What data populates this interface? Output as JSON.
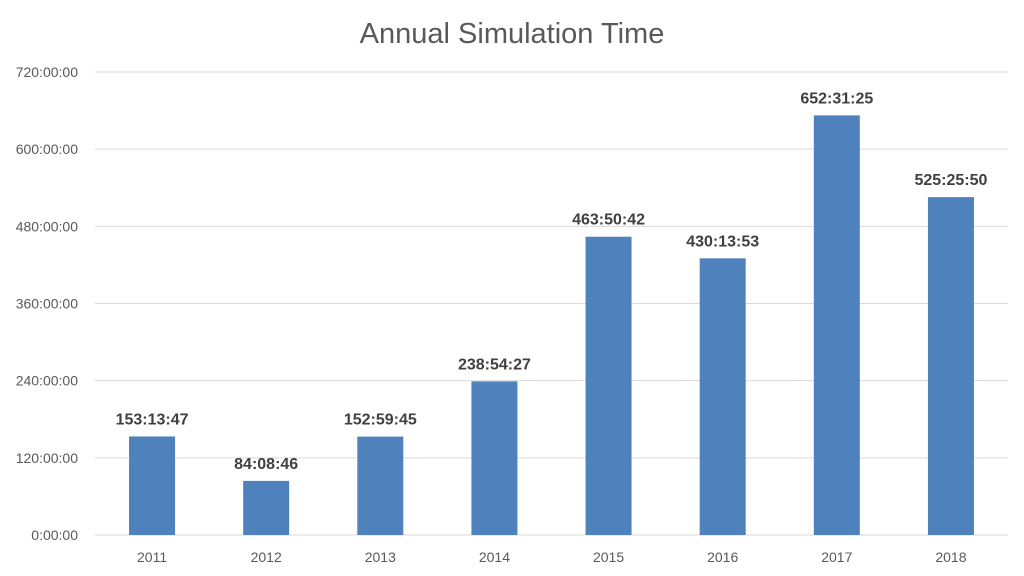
{
  "chart_data": {
    "type": "bar",
    "title": "Annual Simulation Time",
    "xlabel": "",
    "ylabel": "",
    "unit": "hours",
    "categories": [
      "2011",
      "2012",
      "2013",
      "2014",
      "2015",
      "2016",
      "2017",
      "2018"
    ],
    "values": [
      153.2297,
      84.1461,
      152.9958,
      238.9075,
      463.845,
      430.2314,
      652.5236,
      525.4306
    ],
    "value_labels": [
      "153:13:47",
      "84:08:46",
      "152:59:45",
      "238:54:27",
      "463:50:42",
      "430:13:53",
      "652:31:25",
      "525:25:50"
    ],
    "ylim": [
      0,
      720
    ],
    "yticks": [
      0,
      120,
      240,
      360,
      480,
      600,
      720
    ],
    "ytick_labels": [
      "0:00:00",
      "120:00:00",
      "240:00:00",
      "360:00:00",
      "480:00:00",
      "600:00:00",
      "720:00:00"
    ],
    "grid": true,
    "legend": "none",
    "bar_color": "#4f81bd"
  }
}
